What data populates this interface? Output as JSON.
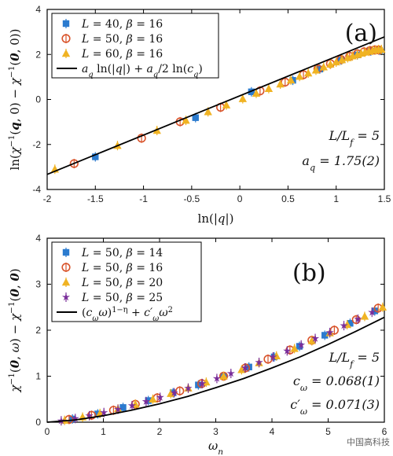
{
  "chart_data": [
    {
      "type": "scatter",
      "panel_label": "(a)",
      "xlabel": "ln(|q|)",
      "ylabel": "ln(χ⁻¹(q,0) − χ⁻¹(0,0))",
      "xlim": [
        -2,
        1.5
      ],
      "ylim": [
        -4,
        4
      ],
      "xticks": [
        -2,
        -1.5,
        -1,
        -0.5,
        0,
        0.5,
        1,
        1.5
      ],
      "xtick_labels": [
        "-2",
        "-1.5",
        "-1",
        "-0.5",
        "0",
        "0.5",
        "1",
        "1.5"
      ],
      "yticks": [
        -4,
        -2,
        0,
        2,
        4
      ],
      "ytick_labels": [
        "-4",
        "-2",
        "0",
        "2",
        "4"
      ],
      "legend_position": "top-left",
      "series": [
        {
          "name": "L = 40, β = 16",
          "marker": "square",
          "color": "#2b7bcf",
          "x": [
            -1.5,
            -0.46,
            0.12,
            0.55,
            0.83,
            1.05,
            1.22,
            1.36,
            1.45
          ],
          "y": [
            -2.55,
            -0.81,
            0.34,
            0.85,
            1.35,
            1.75,
            1.98,
            2.15,
            2.18
          ]
        },
        {
          "name": "L = 50, β = 16",
          "marker": "circle",
          "color": "#d9542b",
          "x": [
            -1.72,
            -1.02,
            -0.62,
            -0.2,
            0.21,
            0.47,
            0.66,
            0.81,
            0.94,
            1.05,
            1.14,
            1.22,
            1.29,
            1.35,
            1.4,
            1.44
          ],
          "y": [
            -2.85,
            -1.72,
            -0.99,
            -0.35,
            0.38,
            0.77,
            1.1,
            1.36,
            1.59,
            1.78,
            1.92,
            2.03,
            2.12,
            2.17,
            2.2,
            2.2
          ]
        },
        {
          "name": "L = 60, β = 16",
          "marker": "triangle",
          "color": "#f0b323",
          "x": [
            -1.92,
            -1.27,
            -0.86,
            -0.56,
            -0.33,
            -0.14,
            0.03,
            0.17,
            0.3,
            0.42,
            0.53,
            0.62,
            0.71,
            0.79,
            0.87,
            0.94,
            1.0,
            1.06,
            1.12,
            1.17,
            1.22,
            1.26,
            1.3,
            1.34,
            1.38,
            1.41,
            1.44,
            1.47
          ],
          "y": [
            -3.1,
            -2.05,
            -1.38,
            -0.93,
            -0.55,
            -0.25,
            0.03,
            0.27,
            0.48,
            0.68,
            0.86,
            1.02,
            1.17,
            1.3,
            1.44,
            1.56,
            1.66,
            1.76,
            1.85,
            1.93,
            1.99,
            2.05,
            2.1,
            2.14,
            2.18,
            2.2,
            2.22,
            2.22
          ]
        }
      ],
      "fit": {
        "name": "a_q ln(|q|) + (a_q/2) ln(c_q)",
        "color": "#000000",
        "x": [
          -2,
          1.5
        ],
        "y": [
          -3.33,
          2.78
        ]
      },
      "annotations": [
        "L/L_f = 5",
        "a_q = 1.75(2)"
      ]
    },
    {
      "type": "scatter",
      "panel_label": "(b)",
      "xlabel": "ω_n",
      "ylabel": "χ⁻¹(0,ω) − χ⁻¹(0,0)",
      "xlim": [
        0,
        6
      ],
      "ylim": [
        0,
        4
      ],
      "xticks": [
        0,
        1,
        2,
        3,
        4,
        5,
        6
      ],
      "xtick_labels": [
        "0",
        "1",
        "2",
        "3",
        "4",
        "5",
        "6"
      ],
      "yticks": [
        0,
        1,
        2,
        3,
        4
      ],
      "ytick_labels": [
        "0",
        "1",
        "2",
        "3",
        "4"
      ],
      "legend_position": "top-left",
      "series": [
        {
          "name": "L = 50, β = 14",
          "marker": "square",
          "color": "#2b7bcf",
          "x": [
            0.45,
            0.9,
            1.35,
            1.8,
            2.24,
            2.69,
            3.14,
            3.59,
            4.04,
            4.49,
            4.94,
            5.39,
            5.83
          ],
          "y": [
            0.07,
            0.18,
            0.32,
            0.47,
            0.64,
            0.81,
            1.0,
            1.2,
            1.42,
            1.65,
            1.89,
            2.15,
            2.42
          ]
        },
        {
          "name": "L = 50, β = 16",
          "marker": "circle",
          "color": "#d9542b",
          "x": [
            0.39,
            0.79,
            1.18,
            1.57,
            1.96,
            2.36,
            2.75,
            3.14,
            3.53,
            3.93,
            4.32,
            4.71,
            5.11,
            5.5,
            5.89
          ],
          "y": [
            0.06,
            0.15,
            0.26,
            0.39,
            0.53,
            0.68,
            0.84,
            1.0,
            1.18,
            1.37,
            1.57,
            1.78,
            2.0,
            2.23,
            2.48
          ]
        },
        {
          "name": "L = 50, β = 20",
          "marker": "triangle",
          "color": "#f0b323",
          "x": [
            0.31,
            0.63,
            0.94,
            1.26,
            1.57,
            1.88,
            2.2,
            2.51,
            2.83,
            3.14,
            3.46,
            3.77,
            4.08,
            4.4,
            4.71,
            5.03,
            5.34,
            5.65,
            5.97
          ],
          "y": [
            0.04,
            0.11,
            0.19,
            0.29,
            0.39,
            0.5,
            0.62,
            0.74,
            0.87,
            1.0,
            1.14,
            1.29,
            1.44,
            1.6,
            1.77,
            1.94,
            2.12,
            2.3,
            2.5
          ]
        },
        {
          "name": "L = 50, β = 25",
          "marker": "star",
          "color": "#7a2e9a",
          "x": [
            0.25,
            0.5,
            0.75,
            1.01,
            1.26,
            1.51,
            1.76,
            2.01,
            2.26,
            2.51,
            2.76,
            3.02,
            3.27,
            3.52,
            3.77,
            4.02,
            4.27,
            4.52,
            4.77,
            5.03,
            5.28,
            5.53,
            5.78
          ],
          "y": [
            0.03,
            0.08,
            0.14,
            0.21,
            0.28,
            0.36,
            0.45,
            0.54,
            0.64,
            0.74,
            0.84,
            0.95,
            1.06,
            1.18,
            1.3,
            1.42,
            1.55,
            1.68,
            1.82,
            1.95,
            2.1,
            2.24,
            2.39
          ]
        }
      ],
      "fit": {
        "name": "(c_ω ω)^(1−η) + c′_ω ω²",
        "color": "#000000",
        "x": [
          0,
          0.5,
          1,
          1.5,
          2,
          2.5,
          3,
          3.5,
          4,
          4.5,
          5,
          5.5,
          6
        ],
        "y": [
          0,
          0.05,
          0.14,
          0.26,
          0.4,
          0.56,
          0.75,
          0.95,
          1.18,
          1.42,
          1.69,
          1.98,
          2.28
        ]
      },
      "annotations": [
        "L/L_f = 5",
        "c_ω = 0.068(1)",
        "c′_ω = 0.071(3)"
      ]
    }
  ],
  "watermark": "中国高科技"
}
